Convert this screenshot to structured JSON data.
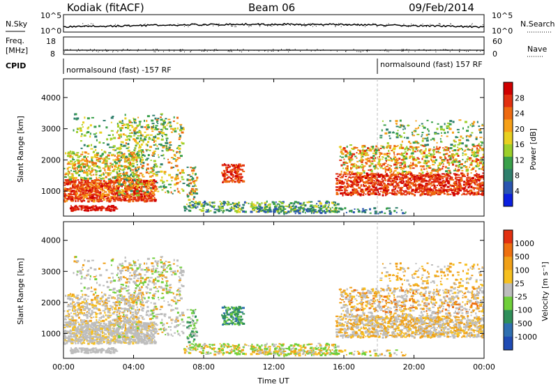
{
  "header": {
    "station": "Kodiak (fitACF)",
    "beam": "Beam 06",
    "date": "09/Feb/2014"
  },
  "sky_panel": {
    "left_label": "N.Sky",
    "right_label": "N.Search",
    "y_ticks": [
      "10^5",
      "10^0"
    ]
  },
  "freq_panel": {
    "left_label_1": "Freq.",
    "left_label_2": "[MHz]",
    "right_label": "Nave",
    "left_ticks": [
      "18",
      "8"
    ],
    "right_ticks": [
      "60",
      "0"
    ]
  },
  "cpid": {
    "label": "CPID",
    "segments": [
      {
        "text": "normalsound (fast) -157 RF",
        "start_hour": 0
      },
      {
        "text": "normalsound (fast) 157 RF",
        "start_hour": 18
      }
    ]
  },
  "chart_data": [
    {
      "type": "heatmap",
      "name": "power",
      "ylabel": "Slant Range [km]",
      "xlabel": "",
      "y_ticks": [
        "1000",
        "2000",
        "3000",
        "4000"
      ],
      "ylim": [
        200,
        4600
      ],
      "colorbar": {
        "label": "Power [dB]",
        "ticks": [
          "4",
          "8",
          "12",
          "16",
          "20",
          "24",
          "28"
        ],
        "colors": [
          "#0b1fe0",
          "#2a55b0",
          "#2f7f6c",
          "#3aa04a",
          "#9ccf2a",
          "#e8d020",
          "#f6a018",
          "#ee6a10",
          "#e23010",
          "#d00000"
        ]
      }
    },
    {
      "type": "heatmap",
      "name": "velocity",
      "ylabel": "Slant Range [km]",
      "xlabel": "Time UT",
      "y_ticks": [
        "1000",
        "2000",
        "3000",
        "4000"
      ],
      "ylim": [
        200,
        4600
      ],
      "x_ticks": [
        "00:00",
        "04:00",
        "08:00",
        "12:00",
        "16:00",
        "20:00",
        "00:00"
      ],
      "colorbar": {
        "label": "Velocity [m s⁻¹]",
        "ticks": [
          "1000",
          "500",
          "100",
          "25",
          "-25",
          "-100",
          "-500",
          "-1000"
        ],
        "colors": [
          "#1f4bb4",
          "#2f6fb0",
          "#2f8f5a",
          "#6fcf3a",
          "#bdbdbd",
          "#f6c020",
          "#f0a018",
          "#ee7010",
          "#e23010"
        ]
      }
    }
  ]
}
